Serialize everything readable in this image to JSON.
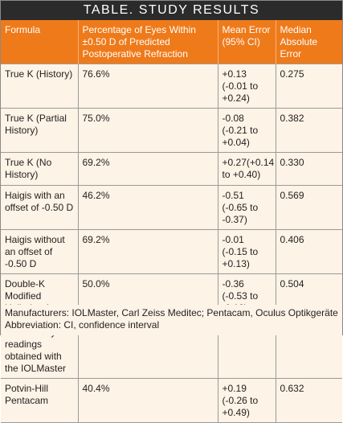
{
  "table": {
    "title": "TABLE. STUDY RESULTS",
    "headers": [
      "Formula",
      "Percentage of Eyes Within ±0.50 D of Predicted Postoperative Refraction",
      "Mean Error (95% CI)",
      "Median Absolute Error"
    ],
    "rows": [
      [
        "True K (History)",
        "76.6%",
        "+0.13 (-0.01 to +0.24)",
        "0.275"
      ],
      [
        "True K (Partial History)",
        "75.0%",
        "-0.08 (-0.21 to +0.04)",
        "0.382"
      ],
      [
        "True K (No History)",
        "69.2%",
        "+0.27(+0.14 to +0.40)",
        "0.330"
      ],
      [
        "Haigis with an offset of -0.50 D",
        "46.2%",
        "-0.51 (-0.65 to -0.37)",
        "0.569"
      ],
      [
        "Haigis without an offset of -0.50 D",
        "69.2%",
        "-0.01 (-0.15 to +0.13)",
        "0.406"
      ],
      [
        "Double-K Modified Holladay 1 using keratometry readings obtained with the IOLMaster",
        "50.0%",
        "-0.36 (-0.53 to -0.18)",
        "0.504"
      ],
      [
        "Potvin-Hill Pentacam",
        "40.4%",
        "+0.19 (-0.26 to +0.49)",
        "0.632"
      ]
    ],
    "footnotes": [
      "Manufacturers: IOLMaster, Carl Zeiss Meditec; Pentacam, Oculus Optikgeräte",
      "Abbreviation: CI, confidence interval"
    ]
  },
  "colors": {
    "title_bg": "#2b2b2b",
    "header_bg": "#ef7a1a",
    "body_bg": "#fdf3e6",
    "grid": "#9a9a9a"
  }
}
